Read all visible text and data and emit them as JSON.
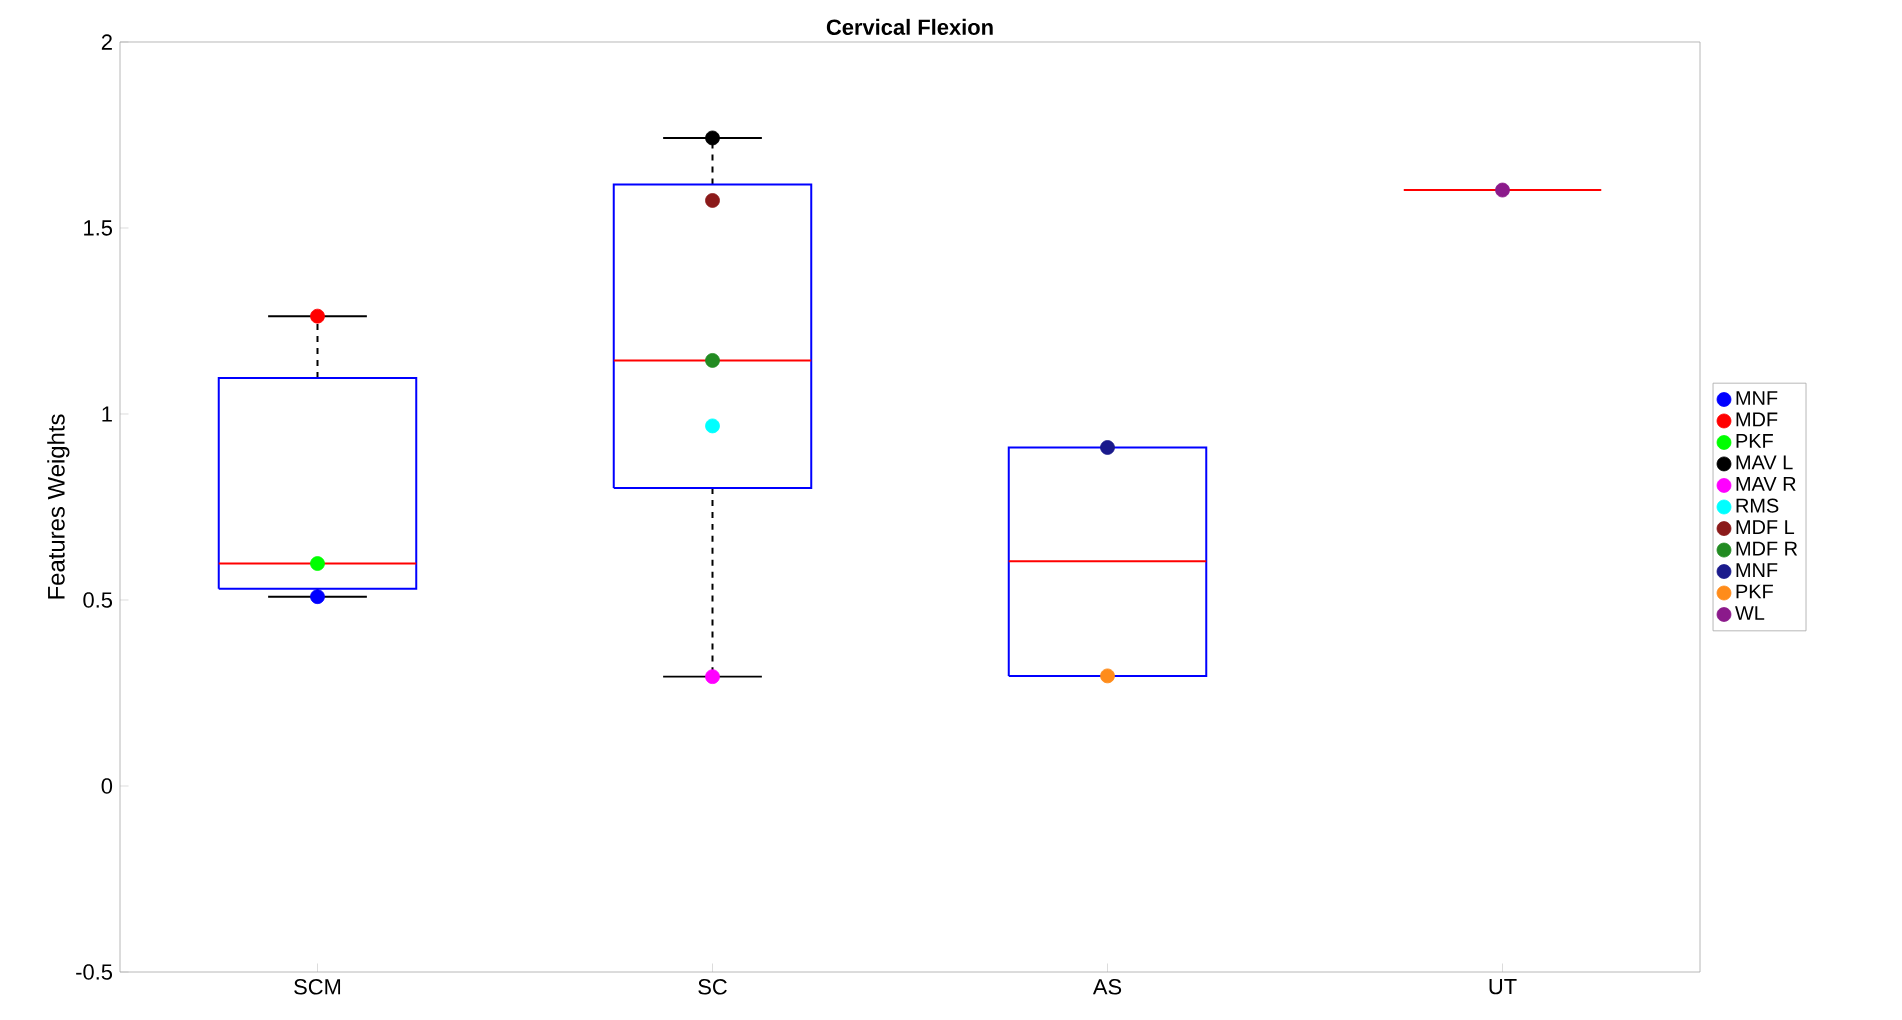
{
  "chart_data": {
    "type": "box",
    "title": "Cervical Flexion",
    "ylabel": "Features Weights",
    "categories": [
      "SCM",
      "SC",
      "AS",
      "UT"
    ],
    "boxes": [
      {
        "low": 0.509,
        "q1": 0.53,
        "median": 0.598,
        "q3": 1.097,
        "high": 1.263
      },
      {
        "low": 0.294,
        "q1": 0.801,
        "median": 1.144,
        "q3": 1.617,
        "high": 1.742
      },
      {
        "low": 0.296,
        "q1": 0.296,
        "median": 0.604,
        "q3": 0.91,
        "high": 0.91
      },
      {
        "low": 1.602,
        "q1": 1.602,
        "median": 1.602,
        "q3": 1.602,
        "high": 1.602
      }
    ],
    "series": [
      {
        "type": "scatter",
        "name": "MNF",
        "color": "#0000ff",
        "x": [
          "SCM"
        ],
        "values": [
          0.509
        ]
      },
      {
        "type": "scatter",
        "name": "MDF",
        "color": "#ff0000",
        "x": [
          "SCM"
        ],
        "values": [
          1.263
        ]
      },
      {
        "type": "scatter",
        "name": "PKF",
        "color": "#00ff00",
        "x": [
          "SCM"
        ],
        "values": [
          0.598
        ]
      },
      {
        "type": "scatter",
        "name": "MAV L",
        "color": "#000000",
        "x": [
          "SC"
        ],
        "values": [
          1.742
        ]
      },
      {
        "type": "scatter",
        "name": "MAV R",
        "color": "#ff00ff",
        "x": [
          "SC"
        ],
        "values": [
          0.294
        ]
      },
      {
        "type": "scatter",
        "name": "RMS",
        "color": "#00ffff",
        "x": [
          "SC"
        ],
        "values": [
          0.968
        ]
      },
      {
        "type": "scatter",
        "name": "MDF L",
        "color": "#8b1a1a",
        "x": [
          "SC"
        ],
        "values": [
          1.574
        ]
      },
      {
        "type": "scatter",
        "name": "MDF R",
        "color": "#228b22",
        "x": [
          "SC"
        ],
        "values": [
          1.144
        ]
      },
      {
        "type": "scatter",
        "name": "MNF",
        "color": "#1a1a8c",
        "x": [
          "AS"
        ],
        "values": [
          0.91
        ]
      },
      {
        "type": "scatter",
        "name": "PKF",
        "color": "#ff8c1a",
        "x": [
          "AS"
        ],
        "values": [
          0.296
        ]
      },
      {
        "type": "scatter",
        "name": "WL",
        "color": "#8b1a8b",
        "x": [
          "UT"
        ],
        "values": [
          1.602
        ]
      }
    ],
    "colors": [
      "#0000ff",
      "#0000ff",
      "#0000ff",
      "#ff0000"
    ],
    "ylim": [
      -0.5,
      2
    ],
    "yticks": [
      -0.5,
      0,
      0.5,
      1,
      1.5,
      2
    ],
    "grid": false,
    "legend": "right",
    "marker": "circle"
  }
}
